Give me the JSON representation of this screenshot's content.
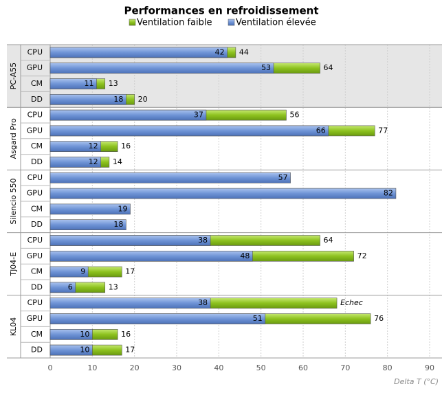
{
  "chart_data": {
    "type": "bar",
    "orientation": "horizontal",
    "title": "Performances en refroidissement",
    "xlabel": "Delta T (°C)",
    "groups": [
      "PC-A55",
      "Asgard Pro",
      "Silencio 550",
      "TJ04-E",
      "KL04"
    ],
    "categories": [
      "CPU",
      "GPU",
      "CM",
      "DD",
      "CPU",
      "GPU",
      "CM",
      "DD",
      "CPU",
      "GPU",
      "CM",
      "DD",
      "CPU",
      "GPU",
      "CM",
      "DD",
      "CPU",
      "GPU",
      "CM",
      "DD"
    ],
    "series": [
      {
        "name": "Ventilation faible",
        "color": "#8dc21f",
        "values": [
          44,
          64,
          13,
          20,
          56,
          77,
          16,
          14,
          null,
          null,
          null,
          null,
          64,
          72,
          17,
          13,
          68,
          76,
          16,
          17
        ],
        "value_labels": [
          "44",
          "64",
          "13",
          "20",
          "56",
          "77",
          "16",
          "14",
          null,
          null,
          null,
          null,
          "64",
          "72",
          "17",
          "13",
          "Echec",
          "76",
          "16",
          "17"
        ]
      },
      {
        "name": "Ventilation élevée",
        "color": "#6f94d6",
        "values": [
          42,
          53,
          11,
          18,
          37,
          66,
          12,
          12,
          57,
          82,
          19,
          18,
          38,
          48,
          9,
          6,
          38,
          51,
          10,
          10
        ]
      }
    ],
    "xlim": [
      0,
      90
    ],
    "xticks": [
      0,
      10,
      20,
      30,
      40,
      50,
      60,
      70,
      80,
      90
    ],
    "grid": true
  }
}
